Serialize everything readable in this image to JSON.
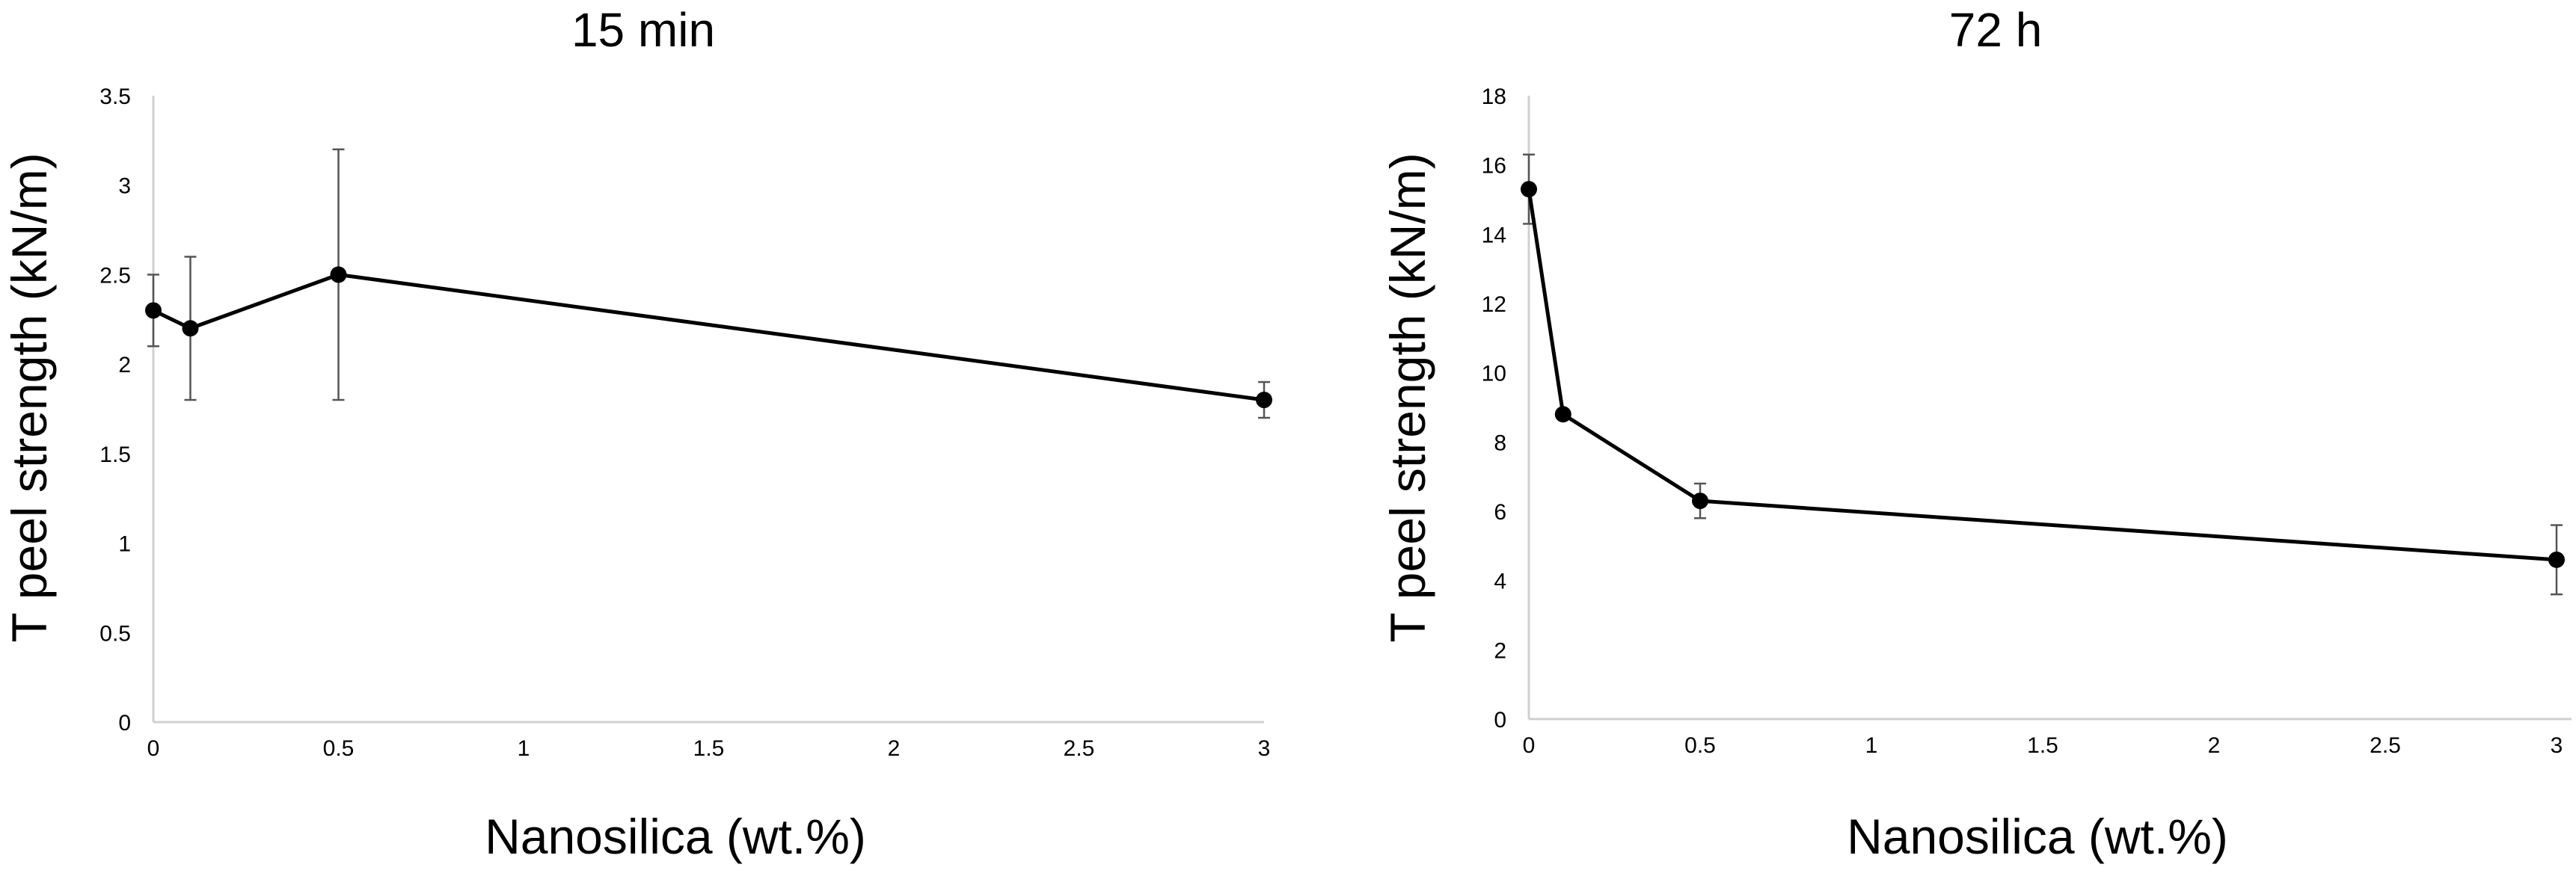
{
  "chart_data": [
    {
      "type": "line",
      "title": "15 min",
      "xlabel": "Nanosilica (wt.%)",
      "ylabel": "T peel strength (kN/m)",
      "xlim": [
        0,
        3
      ],
      "ylim": [
        0,
        3.5
      ],
      "xticks": [
        0,
        0.5,
        1,
        1.5,
        2,
        2.5,
        3
      ],
      "xtick_labels": [
        "0",
        "0.5",
        "1",
        "1.5",
        "2",
        "2.5",
        "3"
      ],
      "yticks": [
        0,
        0.5,
        1,
        1.5,
        2,
        2.5,
        3,
        3.5
      ],
      "ytick_labels": [
        "0",
        "0.5",
        "1",
        "1.5",
        "2",
        "2.5",
        "3",
        "3.5"
      ],
      "grid": false,
      "series": [
        {
          "name": "15 min",
          "x": [
            0,
            0.1,
            0.5,
            3
          ],
          "y": [
            2.3,
            2.2,
            2.5,
            1.8
          ],
          "error": [
            0.2,
            0.4,
            0.7,
            0.1
          ]
        }
      ]
    },
    {
      "type": "line",
      "title": "72 h",
      "xlabel": "Nanosilica (wt.%)",
      "ylabel": "T peel strength (kN/m)",
      "xlim": [
        0,
        3
      ],
      "ylim": [
        0,
        18
      ],
      "xticks": [
        0,
        0.5,
        1,
        1.5,
        2,
        2.5,
        3
      ],
      "xtick_labels": [
        "0",
        "0.5",
        "1",
        "1.5",
        "2",
        "2.5",
        "3"
      ],
      "yticks": [
        0,
        2,
        4,
        6,
        8,
        10,
        12,
        14,
        16,
        18
      ],
      "ytick_labels": [
        "0",
        "2",
        "4",
        "6",
        "8",
        "10",
        "12",
        "14",
        "16",
        "18"
      ],
      "grid": false,
      "series": [
        {
          "name": "72 h",
          "x": [
            0,
            0.1,
            0.5,
            3
          ],
          "y": [
            15.3,
            8.8,
            6.3,
            4.6
          ],
          "error": [
            1.0,
            0.1,
            0.5,
            1.0
          ]
        }
      ]
    }
  ]
}
